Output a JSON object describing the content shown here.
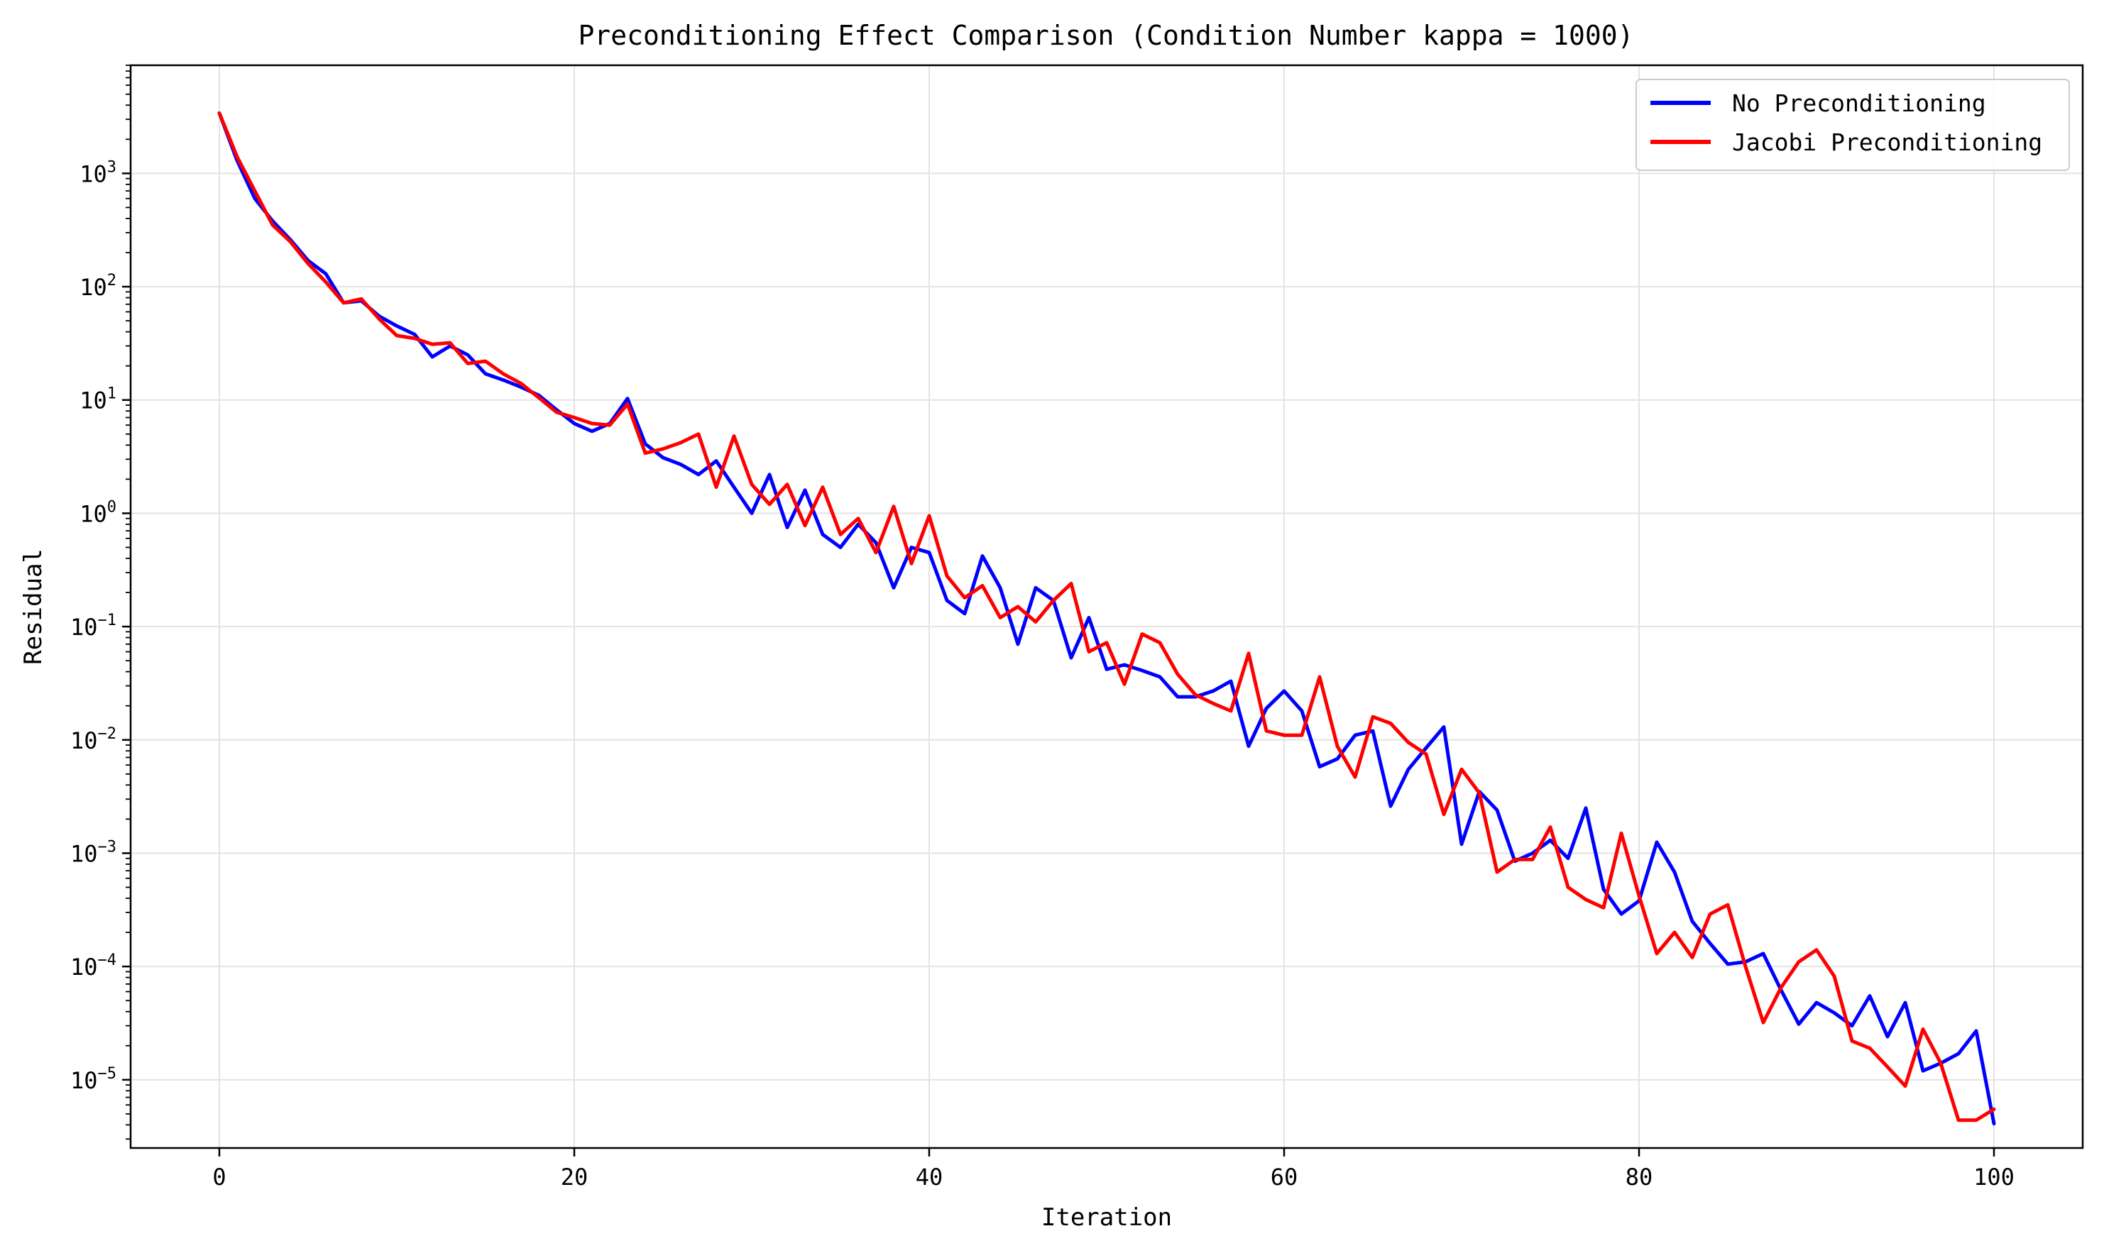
{
  "chart_data": {
    "type": "line",
    "title": "Preconditioning Effect Comparison (Condition Number kappa = 1000)",
    "xlabel": "Iteration",
    "ylabel": "Residual",
    "xlim": [
      -5,
      105
    ],
    "ylim": [
      2.5e-06,
      9000
    ],
    "yscale": "log",
    "grid": true,
    "legend_position": "top-right",
    "x_ticks": [
      0,
      20,
      40,
      60,
      80,
      100
    ],
    "x_tick_labels": [
      "0",
      "20",
      "40",
      "60",
      "80",
      "100"
    ],
    "y_ticks": [
      1000,
      100,
      10,
      1,
      0.1,
      0.01,
      0.001,
      0.0001,
      1e-05
    ],
    "y_tick_labels": [
      {
        "base": "10",
        "exp": "3"
      },
      {
        "base": "10",
        "exp": "2"
      },
      {
        "base": "10",
        "exp": "1"
      },
      {
        "base": "10",
        "exp": "0"
      },
      {
        "base": "10",
        "exp": "−1"
      },
      {
        "base": "10",
        "exp": "−2"
      },
      {
        "base": "10",
        "exp": "−3"
      },
      {
        "base": "10",
        "exp": "−4"
      },
      {
        "base": "10",
        "exp": "−5"
      }
    ],
    "x": [
      0,
      1,
      2,
      3,
      4,
      5,
      6,
      7,
      8,
      9,
      10,
      11,
      12,
      13,
      14,
      15,
      16,
      17,
      18,
      19,
      20,
      21,
      22,
      23,
      24,
      25,
      26,
      27,
      28,
      29,
      30,
      31,
      32,
      33,
      34,
      35,
      36,
      37,
      38,
      39,
      40,
      41,
      42,
      43,
      44,
      45,
      46,
      47,
      48,
      49,
      50,
      51,
      52,
      53,
      54,
      55,
      56,
      57,
      58,
      59,
      60,
      61,
      62,
      63,
      64,
      65,
      66,
      67,
      68,
      69,
      70,
      71,
      72,
      73,
      74,
      75,
      76,
      77,
      78,
      79,
      80,
      81,
      82,
      83,
      84,
      85,
      86,
      87,
      88,
      89,
      90,
      91,
      92,
      93,
      94,
      95,
      96,
      97,
      98,
      99,
      100
    ],
    "series": [
      {
        "name": "No Preconditioning",
        "color": "#0000ff",
        "values": [
          3400,
          1300,
          600,
          380,
          260,
          170,
          130,
          72,
          75,
          55,
          45,
          38,
          24,
          30,
          25,
          17,
          15,
          13,
          11,
          8.2,
          6.2,
          5.3,
          6.2,
          10.3,
          4.1,
          3.1,
          2.7,
          2.2,
          2.9,
          1.7,
          1.0,
          2.2,
          0.75,
          1.6,
          0.65,
          0.5,
          0.8,
          0.55,
          0.22,
          0.5,
          0.45,
          0.17,
          0.13,
          0.42,
          0.22,
          0.07,
          0.22,
          0.17,
          0.053,
          0.12,
          0.042,
          0.046,
          0.041,
          0.036,
          0.024,
          0.024,
          0.027,
          0.033,
          0.0088,
          0.019,
          0.027,
          0.018,
          0.0058,
          0.0068,
          0.011,
          0.012,
          0.0026,
          0.0055,
          0.0085,
          0.013,
          0.0012,
          0.0035,
          0.0024,
          0.00085,
          0.001,
          0.0013,
          0.0009,
          0.0025,
          0.00048,
          0.00029,
          0.00038,
          0.00125,
          0.00068,
          0.00025,
          0.00016,
          0.000105,
          0.00011,
          0.00013,
          6.2e-05,
          3.1e-05,
          4.8e-05,
          3.9e-05,
          3e-05,
          5.5e-05,
          2.4e-05,
          4.8e-05,
          1.2e-05,
          1.4e-05,
          1.7e-05,
          2.7e-05,
          4.1e-06
        ]
      },
      {
        "name": "Jacobi Preconditioning",
        "color": "#ff0000",
        "values": [
          3400,
          1400,
          700,
          350,
          250,
          160,
          110,
          72,
          78,
          52,
          37,
          35,
          31,
          32,
          21,
          22,
          17,
          14,
          10.5,
          7.8,
          7.0,
          6.2,
          6.0,
          9.2,
          3.4,
          3.7,
          4.2,
          5.0,
          1.7,
          4.8,
          1.8,
          1.2,
          1.8,
          0.78,
          1.7,
          0.65,
          0.9,
          0.45,
          1.15,
          0.36,
          0.95,
          0.28,
          0.18,
          0.23,
          0.12,
          0.15,
          0.11,
          0.17,
          0.24,
          0.06,
          0.072,
          0.031,
          0.086,
          0.072,
          0.038,
          0.025,
          0.021,
          0.018,
          0.058,
          0.012,
          0.011,
          0.011,
          0.036,
          0.0088,
          0.0047,
          0.016,
          0.014,
          0.0095,
          0.0075,
          0.0022,
          0.0055,
          0.0034,
          0.00068,
          0.00088,
          0.00088,
          0.0017,
          0.0005,
          0.00039,
          0.00033,
          0.0015,
          0.00042,
          0.00013,
          0.0002,
          0.00012,
          0.00029,
          0.00035,
          0.0001,
          3.2e-05,
          6.5e-05,
          0.00011,
          0.00014,
          8.2e-05,
          2.2e-05,
          1.9e-05,
          1.3e-05,
          8.8e-06,
          2.8e-05,
          1.4e-05,
          4.4e-06,
          4.4e-06,
          5.5e-06
        ]
      }
    ]
  }
}
